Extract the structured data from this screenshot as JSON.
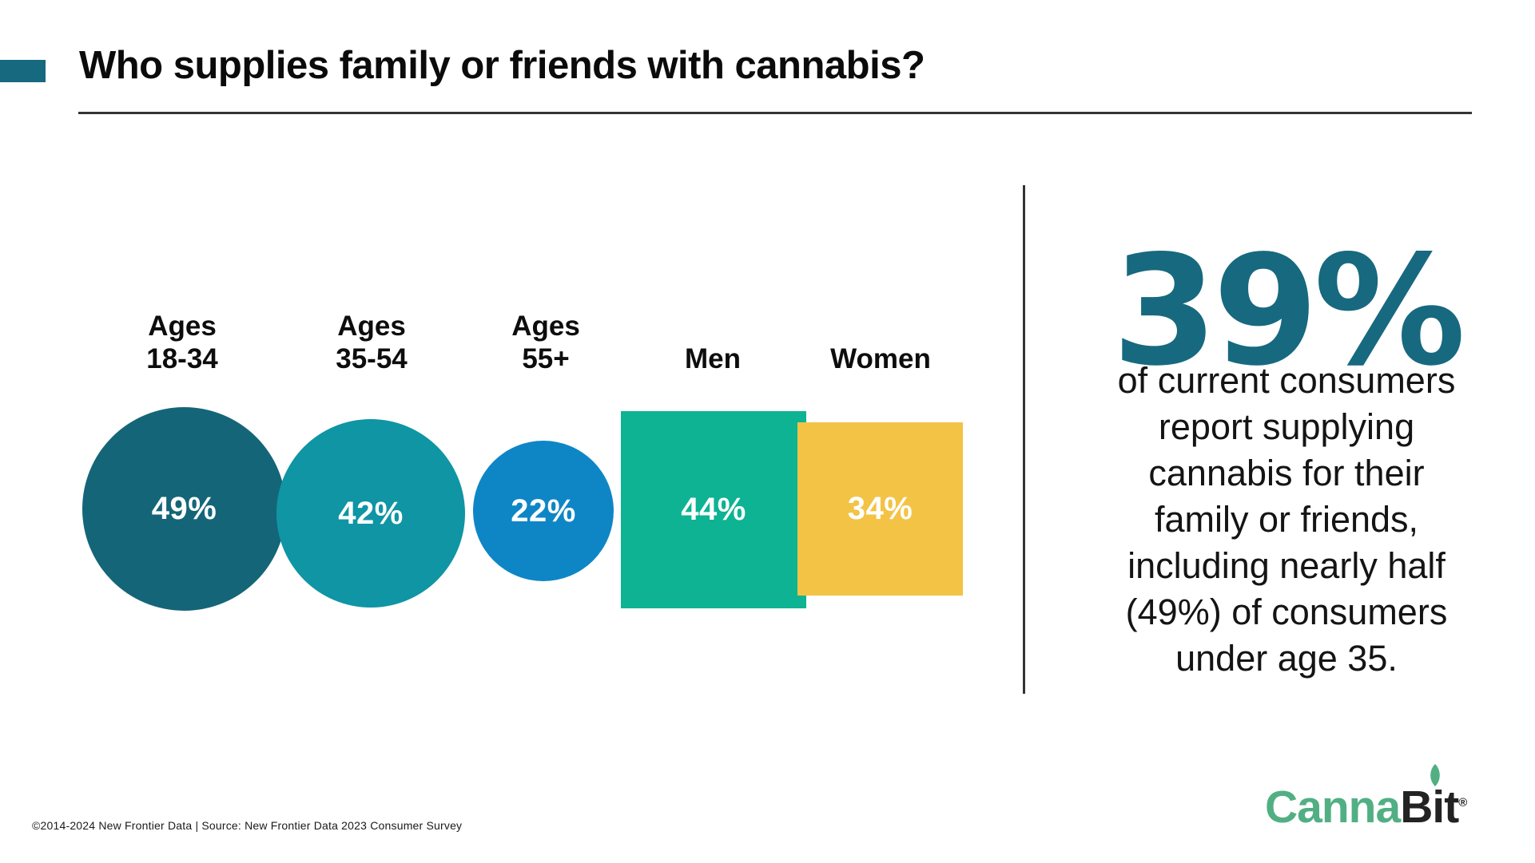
{
  "accent_color": "#16697e",
  "header": {
    "title": "Who supplies family or friends with cannabis?"
  },
  "chart_data": {
    "type": "proportional-area",
    "title": "Who supplies family or friends with cannabis?",
    "categories": [
      "Ages 18-34",
      "Ages 35-54",
      "Ages 55+",
      "Men",
      "Women"
    ],
    "values": [
      49,
      42,
      22,
      44,
      34
    ],
    "value_labels": [
      "49%",
      "42%",
      "22%",
      "44%",
      "34%"
    ],
    "shapes": [
      "circle",
      "circle",
      "circle",
      "square",
      "square"
    ],
    "colors": [
      "#156578",
      "#0f95a4",
      "#0e86c6",
      "#0db392",
      "#f3c345"
    ],
    "legend_position": "none",
    "grid": false,
    "groups": [
      {
        "label_line1": "Ages",
        "label_line2": "18-34",
        "value": "49%",
        "color": "#156578"
      },
      {
        "label_line1": "Ages",
        "label_line2": "35-54",
        "value": "42%",
        "color": "#0f95a4"
      },
      {
        "label_line1": "Ages",
        "label_line2": "55+",
        "value": "22%",
        "color": "#0e86c6"
      },
      {
        "label_line1": "Men",
        "label_line2": "",
        "value": "44%",
        "color": "#0db392"
      },
      {
        "label_line1": "Women",
        "label_line2": "",
        "value": "34%",
        "color": "#f3c345"
      }
    ]
  },
  "callout": {
    "stat": "39%",
    "stat_color": "#17697f",
    "lines": [
      "of current consumers",
      "report supplying",
      "cannabis for their",
      "family or friends,",
      "including nearly half",
      "(49%) of consumers",
      "under age 35."
    ]
  },
  "footer": {
    "source": "©2014-2024 New Frontier Data | Source: New Frontier Data 2023 Consumer Survey"
  },
  "logo": {
    "part1": "Canna",
    "part2": "Bit",
    "registered": "®",
    "green": "#52af84",
    "dark": "#232323"
  }
}
